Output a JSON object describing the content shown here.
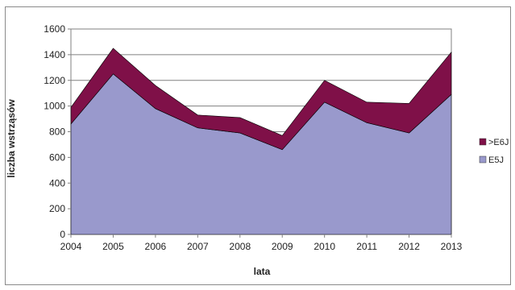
{
  "chart_data": {
    "type": "area",
    "stacked": true,
    "xlabel": "lata",
    "ylabel": "liczba wstrząsów",
    "ylim": [
      0,
      1600
    ],
    "yticks": [
      0,
      200,
      400,
      600,
      800,
      1000,
      1200,
      1400,
      1600
    ],
    "x": [
      "2004",
      "2005",
      "2006",
      "2007",
      "2008",
      "2009",
      "2010",
      "2011",
      "2012",
      "2013"
    ],
    "grid": true,
    "legend_position": "right",
    "series": [
      {
        "name": "E5J",
        "color": "#9999cc",
        "values": [
          860,
          1250,
          980,
          830,
          790,
          660,
          1030,
          870,
          790,
          1090
        ]
      },
      {
        "name": ">E6J",
        "color": "#7f1048",
        "values": [
          130,
          200,
          180,
          100,
          120,
          110,
          170,
          160,
          230,
          330
        ]
      }
    ],
    "legend": [
      ">E6J",
      "E5J"
    ]
  }
}
